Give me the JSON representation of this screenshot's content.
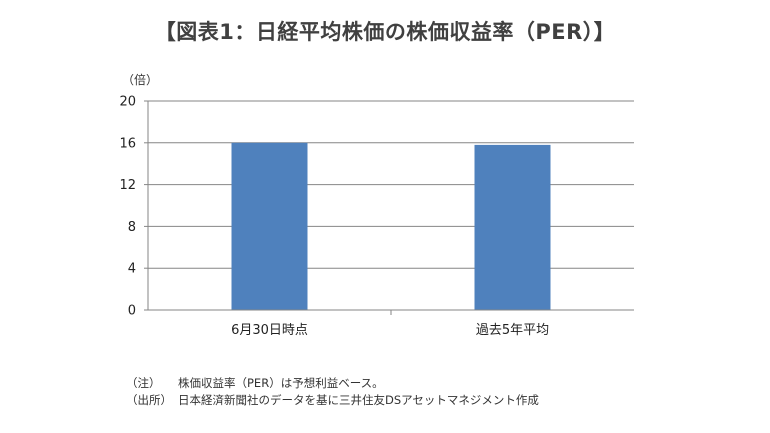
{
  "title": "【図表1：日経平均株価の株価収益率（PER）】",
  "chart_data": {
    "type": "bar",
    "categories": [
      "6月30日時点",
      "過去5年平均"
    ],
    "values": [
      16.0,
      15.8
    ],
    "ylabel": "（倍）",
    "ylim": [
      0,
      20
    ],
    "yticks": [
      0,
      4,
      8,
      12,
      16,
      20
    ],
    "grid": true,
    "bar_color": "#4F81BD"
  },
  "notes": [
    {
      "tag": "（注）",
      "text": "株価収益率（PER）は予想利益ベース。"
    },
    {
      "tag": "（出所）",
      "text": "日本経済新聞社のデータを基に三井住友DSアセットマネジメント作成"
    }
  ]
}
